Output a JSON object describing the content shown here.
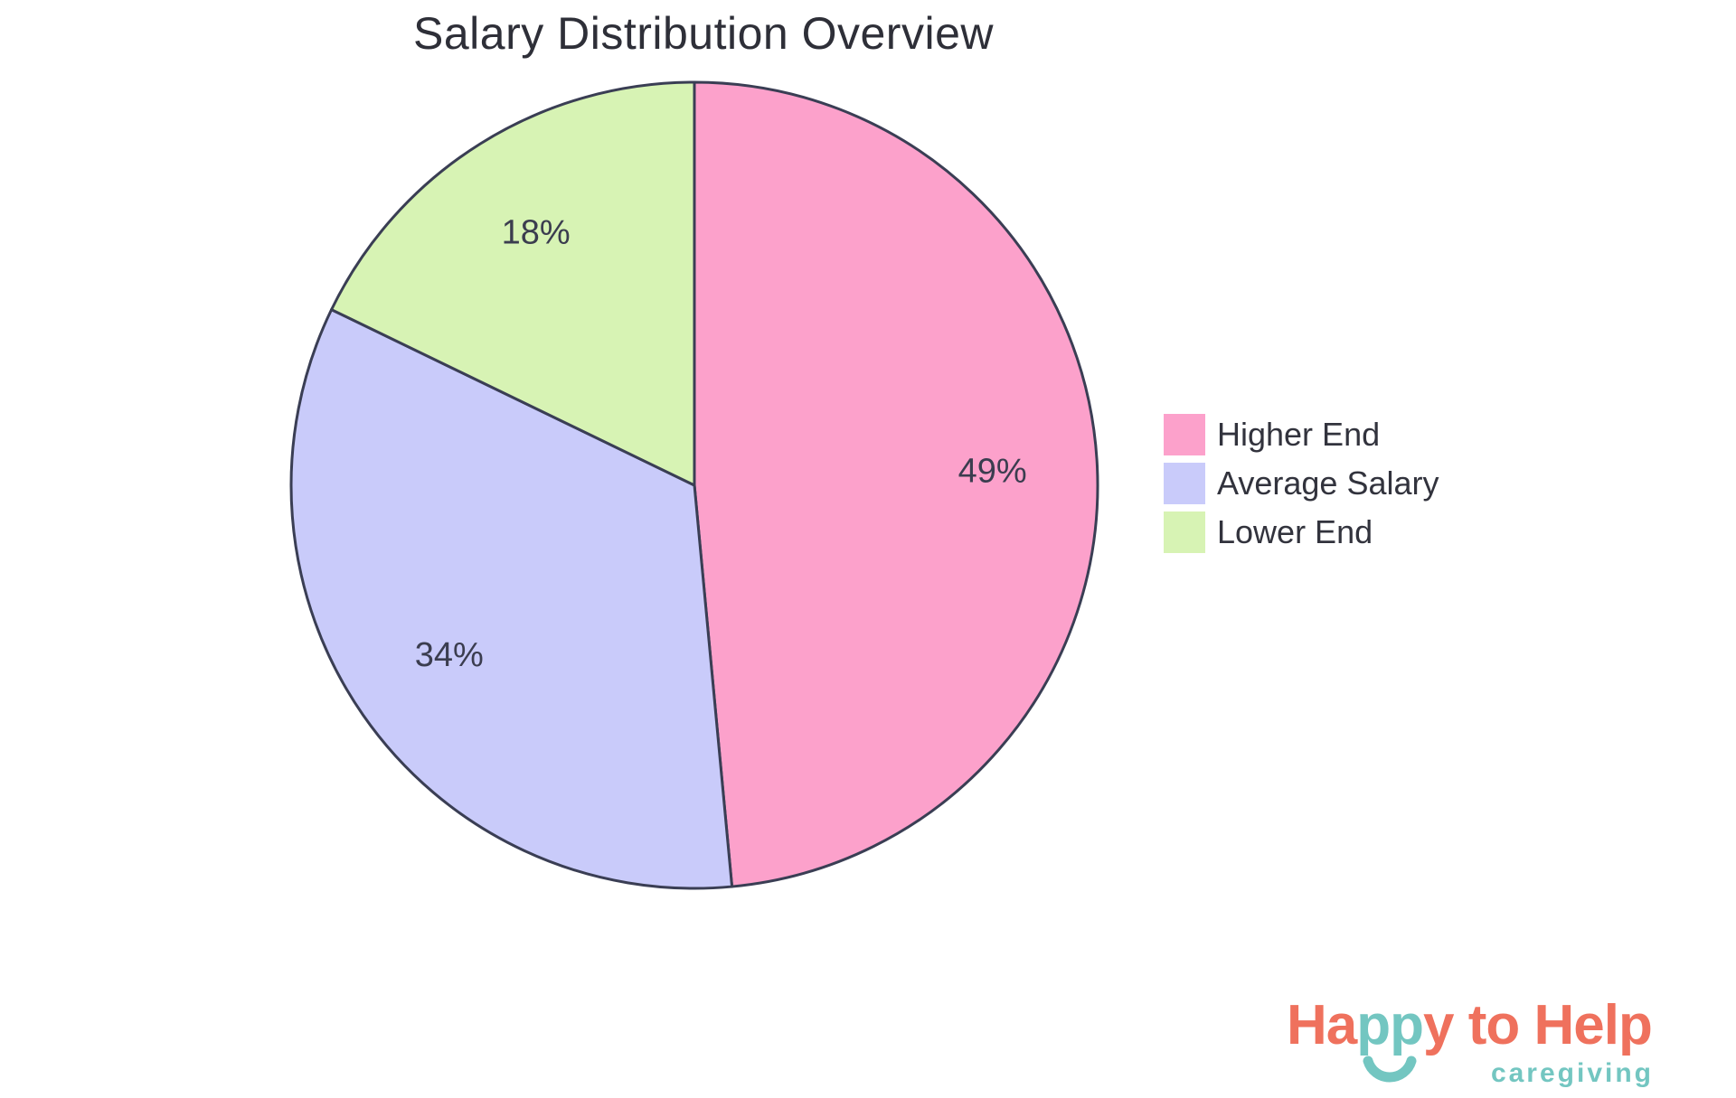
{
  "title": "Salary Distribution Overview",
  "chart_data": {
    "type": "pie",
    "title": "Salary Distribution Overview",
    "labels": [
      "Higher End",
      "Average Salary",
      "Lower End"
    ],
    "values": [
      49,
      34,
      18
    ],
    "pct_labels": [
      "49%",
      "34%",
      "18%"
    ],
    "colors": [
      "#FCA1CB",
      "#C9CBFA",
      "#D7F3B4"
    ],
    "edge_color": "#3A3E54",
    "label_color": "#3B3D4F",
    "start_angle": "12 o'clock, clockwise",
    "legend_position": "right"
  },
  "legend": {
    "items": [
      {
        "label": "Higher End",
        "color": "#FCA1CB"
      },
      {
        "label": "Average Salary",
        "color": "#C9CBFA"
      },
      {
        "label": "Lower End",
        "color": "#D7F3B4"
      }
    ]
  },
  "logo": {
    "word_part_ha": "Ha",
    "word_part_pp": "pp",
    "word_part_y": "y",
    "word_rest": " to Help",
    "subtitle": "caregiving",
    "coral": "#EF715D",
    "teal": "#73C6C1"
  }
}
